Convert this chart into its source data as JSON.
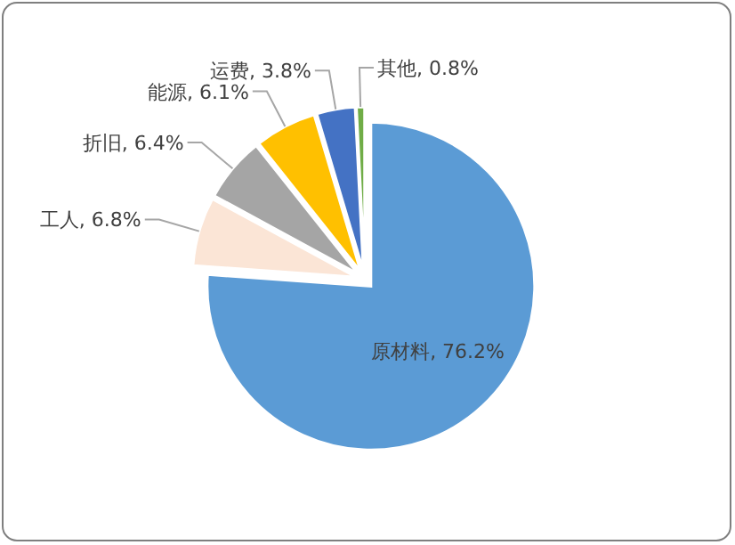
{
  "chart_data": {
    "type": "pie",
    "categories": [
      "原材料",
      "工人",
      "折旧",
      "能源",
      "运费",
      "其他"
    ],
    "values": [
      76.2,
      6.8,
      6.4,
      6.1,
      3.8,
      0.8
    ],
    "value_labels": [
      "76.2%",
      "6.8%",
      "6.4%",
      "6.1%",
      "3.8%",
      "0.8%"
    ],
    "colors": [
      "#5b9bd5",
      "#fbe5d6",
      "#a5a5a5",
      "#ffc000",
      "#4472c4",
      "#70ad47"
    ]
  }
}
